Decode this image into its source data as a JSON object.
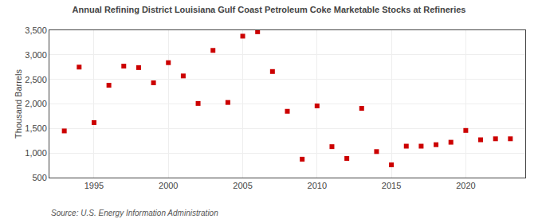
{
  "chart_data": {
    "type": "scatter",
    "title": "Annual Refining District Louisiana Gulf Coast Petroleum Coke Marketable Stocks at Refineries",
    "ylabel": "Thousand Barrels",
    "annotations": [
      "Source: U.S. Energy Information Administration"
    ],
    "x": [
      1993,
      1994,
      1995,
      1996,
      1997,
      1998,
      1999,
      2000,
      2001,
      2002,
      2003,
      2004,
      2005,
      2006,
      2007,
      2008,
      2009,
      2010,
      2011,
      2012,
      2013,
      2014,
      2015,
      2016,
      2017,
      2018,
      2019,
      2020,
      2021,
      2022,
      2023
    ],
    "values": [
      1450,
      2750,
      1620,
      2380,
      2770,
      2740,
      2430,
      2840,
      2570,
      2010,
      3090,
      2030,
      3380,
      3470,
      2660,
      1850,
      875,
      1960,
      1130,
      890,
      1910,
      1030,
      760,
      1140,
      1140,
      1170,
      1220,
      1460,
      1270,
      1290,
      1290
    ],
    "color": "#cc0000",
    "marker": "square",
    "xlim": [
      1992,
      2024
    ],
    "xticks": [
      1995,
      2000,
      2005,
      2010,
      2015,
      2020
    ],
    "ylim": [
      500,
      3500
    ],
    "yticks": [
      500,
      {
        "value": 1000,
        "label": "1,000"
      },
      {
        "value": 1500,
        "label": "1,500"
      },
      {
        "value": 2000,
        "label": "2,000"
      },
      {
        "value": 2500,
        "label": "2,500"
      },
      {
        "value": 3000,
        "label": "3,000"
      },
      {
        "value": 3500,
        "label": "3,500"
      }
    ],
    "grid": true
  }
}
